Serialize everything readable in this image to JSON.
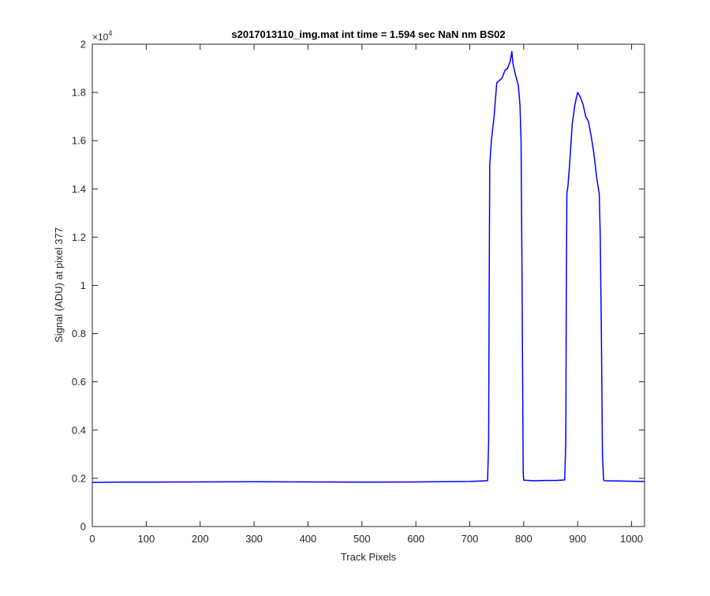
{
  "chart_data": {
    "type": "line",
    "title": "s2017013110_img.mat int time = 1.594 sec  NaN nm BS02",
    "xlabel": "Track Pixels",
    "ylabel": "Signal (ADU) at pixel 377",
    "xlim": [
      0,
      1024
    ],
    "ylim": [
      0,
      20000
    ],
    "x_ticks": [
      0,
      100,
      200,
      300,
      400,
      500,
      600,
      700,
      800,
      900,
      1000
    ],
    "x_tick_labels": [
      "0",
      "100",
      "200",
      "300",
      "400",
      "500",
      "600",
      "700",
      "800",
      "900",
      "1000"
    ],
    "y_ticks": [
      0,
      2000,
      4000,
      6000,
      8000,
      10000,
      12000,
      14000,
      16000,
      18000,
      20000
    ],
    "y_tick_labels": [
      "0",
      "0.2",
      "0.4",
      "0.6",
      "0.8",
      "1",
      "1.2",
      "1.4",
      "1.6",
      "1.8",
      "2"
    ],
    "y_exponent_label": "×10",
    "y_exponent_power": "4",
    "grid": false,
    "series": [
      {
        "color": "#0000ff",
        "x": [
          0,
          50,
          100,
          200,
          300,
          400,
          500,
          600,
          700,
          733,
          735,
          736,
          737,
          740,
          745,
          750,
          755,
          760,
          765,
          770,
          775,
          778,
          780,
          785,
          790,
          793,
          795,
          797,
          799,
          800,
          820,
          840,
          860,
          876,
          878,
          879,
          880,
          882,
          885,
          890,
          895,
          900,
          905,
          910,
          915,
          920,
          925,
          930,
          935,
          940,
          942,
          944,
          946,
          948,
          950,
          1000,
          1024
        ],
        "y": [
          1830,
          1840,
          1840,
          1850,
          1860,
          1850,
          1840,
          1850,
          1870,
          1900,
          3500,
          10000,
          15000,
          16000,
          17000,
          18400,
          18500,
          18600,
          18900,
          19000,
          19300,
          19700,
          19200,
          18700,
          18300,
          17500,
          16000,
          10000,
          2200,
          1920,
          1900,
          1910,
          1910,
          1930,
          3500,
          10000,
          13800,
          14100,
          15000,
          16700,
          17500,
          18000,
          17800,
          17500,
          17000,
          16800,
          16200,
          15500,
          14500,
          13800,
          12000,
          8000,
          3000,
          1950,
          1900,
          1880,
          1870
        ]
      }
    ]
  }
}
